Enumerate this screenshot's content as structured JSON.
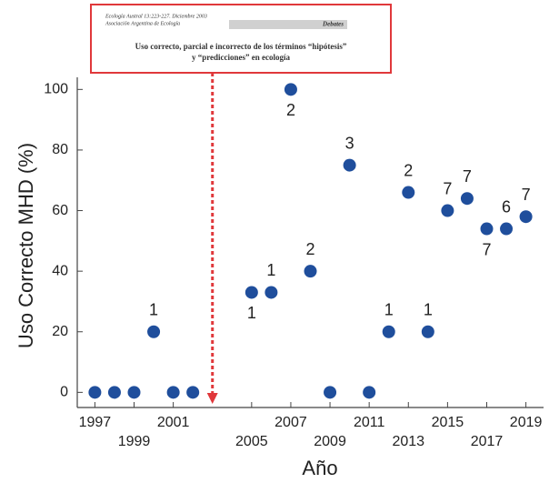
{
  "chart_data": {
    "type": "scatter",
    "x_label": "Año",
    "y_label": "Uso Correcto MHD (%)",
    "x": [
      1997,
      1998,
      1999,
      2000,
      2001,
      2002,
      2005,
      2006,
      2007,
      2008,
      2009,
      2010,
      2011,
      2012,
      2013,
      2014,
      2015,
      2016,
      2017,
      2018,
      2019
    ],
    "series": [
      {
        "color": "#1f4e9c",
        "values": [
          0,
          0,
          0,
          20,
          0,
          0,
          33,
          33,
          100,
          40,
          0,
          75,
          0,
          20,
          66,
          20,
          60,
          64,
          54,
          54,
          58
        ],
        "point_labels": [
          null,
          null,
          null,
          "1",
          null,
          null,
          "1",
          "1",
          "2",
          "2",
          null,
          "3",
          null,
          "1",
          "2",
          "1",
          "7",
          "7",
          "7",
          "6",
          "7"
        ]
      }
    ],
    "xlim": [
      1996.1,
      2019.9
    ],
    "ylim": [
      -5,
      104
    ],
    "xticks": [
      1997,
      1999,
      2001,
      2005,
      2007,
      2009,
      2011,
      2013,
      2015,
      2017,
      2019
    ],
    "yticks": [
      0,
      20,
      40,
      60,
      80,
      100
    ],
    "inset": {
      "x": 2003,
      "color": "#e0383b",
      "journal": "Ecología Austral 13:223-227. Diciembre 2003",
      "society": "Asociación Argentina de Ecología",
      "section": "Debates",
      "title_line1": "Uso correcto, parcial e incorrecto de los términos “hipótesis”",
      "title_line2": "y “predicciones” en ecología"
    }
  }
}
